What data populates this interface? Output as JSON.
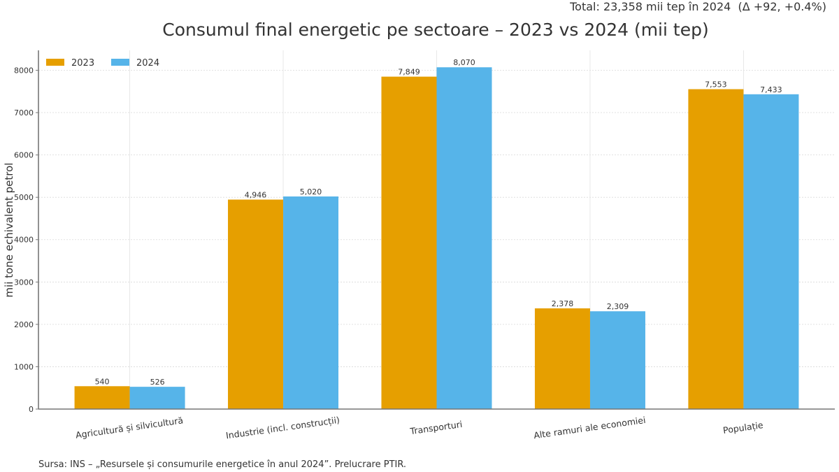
{
  "header": {
    "total_note": "Total: 23,358 mii tep în 2024  (Δ +92, +0.4%)",
    "title": "Consumul final energetic pe sectoare – 2023 vs 2024 (mii tep)"
  },
  "footer": {
    "source": "Sursa: INS – „Resursele și consumurile energetice în anul 2024”. Prelucrare PTIR."
  },
  "chart_data": {
    "type": "bar",
    "title": "Consumul final energetic pe sectoare – 2023 vs 2024 (mii tep)",
    "xlabel": "",
    "ylabel": "mii tone echivalent petrol",
    "categories": [
      "Agricultură și silvicultură",
      "Industrie (incl. construcții)",
      "Transporturi",
      "Alte ramuri ale economiei",
      "Populație"
    ],
    "series": [
      {
        "name": "2023",
        "color": "#E69F00",
        "values": [
          540,
          4946,
          7849,
          2378,
          7553
        ],
        "labels": [
          "540",
          "4,946",
          "7,849",
          "2,378",
          "7,553"
        ]
      },
      {
        "name": "2024",
        "color": "#56B4E9",
        "values": [
          526,
          5020,
          8070,
          2309,
          7433
        ],
        "labels": [
          "526",
          "5,020",
          "8,070",
          "2,309",
          "7,433"
        ]
      }
    ],
    "ylim": [
      0,
      8470
    ],
    "yticks": [
      0,
      1000,
      2000,
      3000,
      4000,
      5000,
      6000,
      7000,
      8000
    ],
    "grid": true,
    "legend": "top-left",
    "xtick_rotation": -8
  }
}
